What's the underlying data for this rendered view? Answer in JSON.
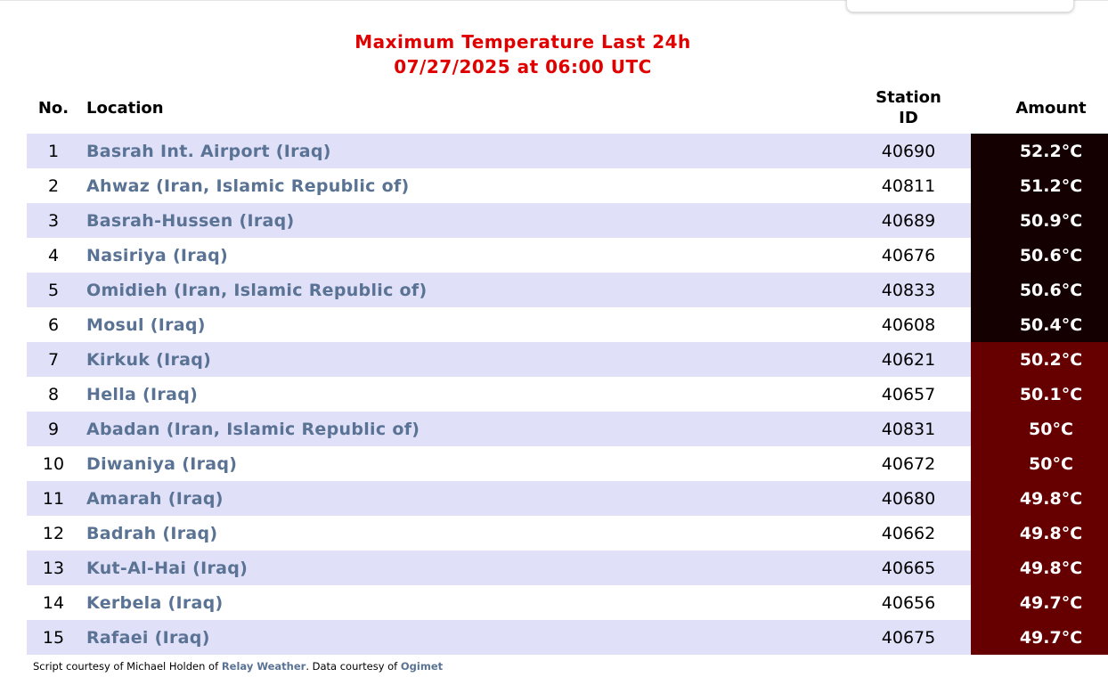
{
  "header": {
    "title_line1": "Maximum Temperature Last 24h",
    "title_line2": "07/27/2025 at 06:00 UTC"
  },
  "table": {
    "columns": [
      "No.",
      "Location",
      "Station ID",
      "Amount"
    ],
    "rows": [
      [
        1,
        "Basrah Int. Airport (Iraq)",
        40690,
        "52.2°C"
      ],
      [
        2,
        "Ahwaz (Iran, Islamic Republic of)",
        40811,
        "51.2°C"
      ],
      [
        3,
        "Basrah-Hussen (Iraq)",
        40689,
        "50.9°C"
      ],
      [
        4,
        "Nasiriya (Iraq)",
        40676,
        "50.6°C"
      ],
      [
        5,
        "Omidieh (Iran, Islamic Republic of)",
        40833,
        "50.6°C"
      ],
      [
        6,
        "Mosul (Iraq)",
        40608,
        "50.4°C"
      ],
      [
        7,
        "Kirkuk (Iraq)",
        40621,
        "50.2°C"
      ],
      [
        8,
        "Hella (Iraq)",
        40657,
        "50.1°C"
      ],
      [
        9,
        "Abadan (Iran, Islamic Republic of)",
        40831,
        "50°C"
      ],
      [
        10,
        "Diwaniya (Iraq)",
        40672,
        "50°C"
      ],
      [
        11,
        "Amarah (Iraq)",
        40680,
        "49.8°C"
      ],
      [
        12,
        "Badrah (Iraq)",
        40662,
        "49.8°C"
      ],
      [
        13,
        "Kut-Al-Hai (Iraq)",
        40665,
        "49.8°C"
      ],
      [
        14,
        "Kerbela (Iraq)",
        40656,
        "49.7°C"
      ],
      [
        15,
        "Rafaei (Iraq)",
        40675,
        "49.7°C"
      ]
    ]
  },
  "footer": {
    "text1": "Script courtesy of  Michael Holden of",
    "link1": "Relay Weather",
    "text2": ". Data courtesy of",
    "link2": "Ogimet"
  }
}
